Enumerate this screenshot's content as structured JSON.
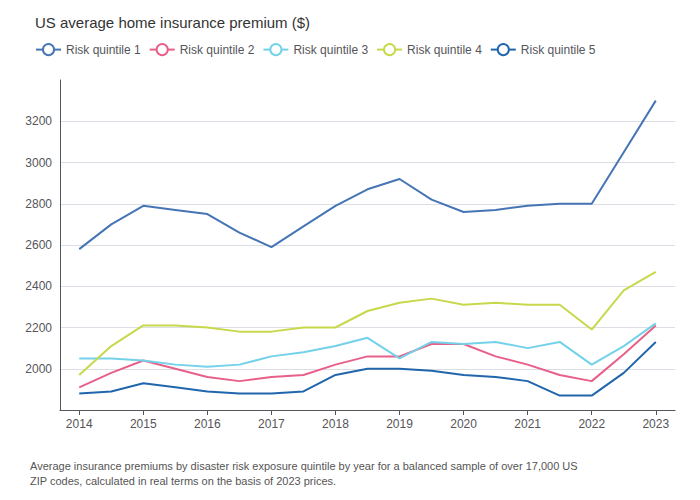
{
  "chart_data": {
    "type": "line",
    "title": "US average home insurance premium ($)",
    "annotations": [
      "Average insurance premiums by disaster risk exposure quintile by year for a balanced sample of over 17,000 US\nZIP codes, calculated in real terms on the basis of 2023 prices."
    ],
    "x": [
      2014,
      2014.5,
      2015,
      2015.5,
      2016,
      2016.5,
      2017,
      2017.5,
      2018,
      2018.5,
      2019,
      2019.5,
      2020,
      2020.5,
      2021,
      2021.5,
      2022,
      2022.5,
      2023
    ],
    "series": [
      {
        "name": "Risk quintile 1",
        "color": "#4575b4",
        "values": [
          2580,
          2700,
          2790,
          2770,
          2750,
          2660,
          2590,
          2690,
          2790,
          2870,
          2920,
          2820,
          2760,
          2770,
          2790,
          2800,
          2800,
          3050,
          3300
        ]
      },
      {
        "name": "Risk quintile 2",
        "color": "#e8608a",
        "values": [
          1910,
          1980,
          2040,
          2000,
          1960,
          1940,
          1960,
          1970,
          2020,
          2060,
          2060,
          2120,
          2120,
          2060,
          2020,
          1970,
          1940,
          2070,
          2210
        ]
      },
      {
        "name": "Risk quintile 3",
        "color": "#74d1ea",
        "values": [
          2050,
          2050,
          2040,
          2020,
          2010,
          2020,
          2060,
          2080,
          2110,
          2150,
          2050,
          2130,
          2120,
          2130,
          2100,
          2130,
          2020,
          2110,
          2220
        ]
      },
      {
        "name": "Risk quintile 4",
        "color": "#c8d84b",
        "values": [
          1970,
          2110,
          2210,
          2210,
          2200,
          2180,
          2180,
          2200,
          2200,
          2280,
          2320,
          2340,
          2310,
          2320,
          2310,
          2310,
          2190,
          2380,
          2470
        ]
      },
      {
        "name": "Risk quintile 5",
        "color": "#2166ac",
        "values": [
          1880,
          1890,
          1930,
          1910,
          1890,
          1880,
          1880,
          1890,
          1970,
          2000,
          2000,
          1990,
          1970,
          1960,
          1940,
          1870,
          1870,
          1980,
          2130
        ]
      }
    ],
    "xlim": [
      2013.7,
      2023.3
    ],
    "xticks": [
      2014,
      2015,
      2016,
      2017,
      2018,
      2019,
      2020,
      2021,
      2022,
      2023
    ],
    "ylim": [
      1800,
      3400
    ],
    "yticks": [
      2000,
      2200,
      2400,
      2600,
      2800,
      3000,
      3200
    ],
    "grid": true,
    "legend": "upper left"
  }
}
